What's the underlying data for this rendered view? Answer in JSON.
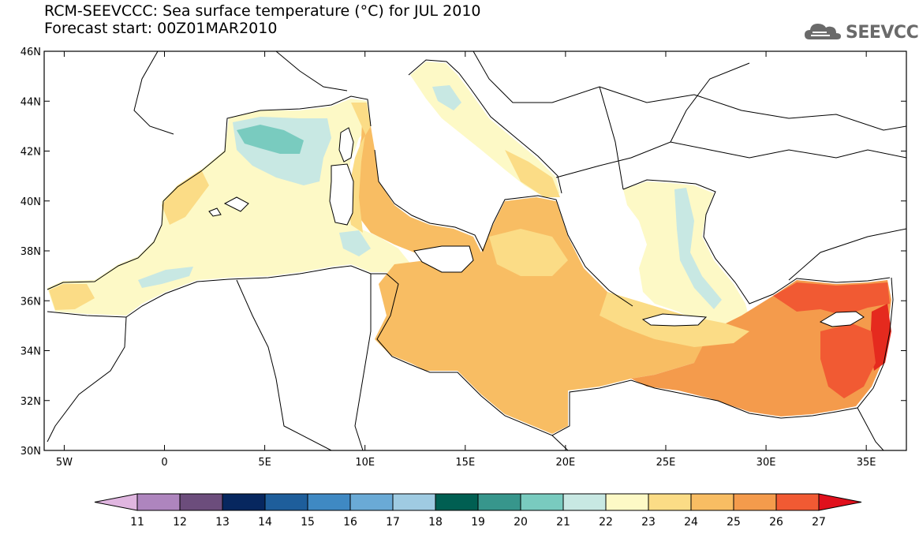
{
  "header": {
    "title_line1": "RCM-SEEVCCC: Sea surface temperature (°C) for JUL 2010",
    "title_line2": "Forecast start: 00Z01MAR2010",
    "logo_text": "SEEVCCC"
  },
  "map": {
    "lon_range": [
      -6,
      37
    ],
    "lat_range": [
      30,
      46
    ],
    "lat_ticks": [
      {
        "value": 46,
        "label": "46N"
      },
      {
        "value": 44,
        "label": "44N"
      },
      {
        "value": 42,
        "label": "42N"
      },
      {
        "value": 40,
        "label": "40N"
      },
      {
        "value": 38,
        "label": "38N"
      },
      {
        "value": 36,
        "label": "36N"
      },
      {
        "value": 34,
        "label": "34N"
      },
      {
        "value": 32,
        "label": "32N"
      },
      {
        "value": 30,
        "label": "30N"
      }
    ],
    "lon_ticks": [
      {
        "value": -5,
        "label": "5W"
      },
      {
        "value": 0,
        "label": "0"
      },
      {
        "value": 5,
        "label": "5E"
      },
      {
        "value": 10,
        "label": "10E"
      },
      {
        "value": 15,
        "label": "15E"
      },
      {
        "value": 20,
        "label": "20E"
      },
      {
        "value": 25,
        "label": "25E"
      },
      {
        "value": 30,
        "label": "30E"
      },
      {
        "value": 35,
        "label": "35E"
      }
    ],
    "colors": {
      "land": "#ffffff",
      "border": "#000000",
      "c19_21": "#79cbbf",
      "c21_22": "#c8e8e3",
      "c22_23": "#fdf9c6",
      "c23_24": "#fbdc86",
      "c24_25": "#f8bd63",
      "c25_26": "#f49b4c",
      "c26_27": "#f15a33",
      "c27_plus": "#e52a1e"
    }
  },
  "colorbar": {
    "labels": [
      "11",
      "12",
      "13",
      "14",
      "15",
      "16",
      "17",
      "18",
      "19",
      "20",
      "21",
      "22",
      "23",
      "24",
      "25",
      "26",
      "27"
    ],
    "low_color": "#e0b6e0",
    "high_color": "#e0101c",
    "colors": [
      "#ae85be",
      "#6c4d7c",
      "#07275f",
      "#1e5e9b",
      "#3f89c3",
      "#6aaad6",
      "#9fcbe2",
      "#005f52",
      "#37968c",
      "#79cbbf",
      "#c8e8e3",
      "#fdf9c6",
      "#fbdc86",
      "#f8bd63",
      "#f49b4c",
      "#f15a33"
    ]
  }
}
